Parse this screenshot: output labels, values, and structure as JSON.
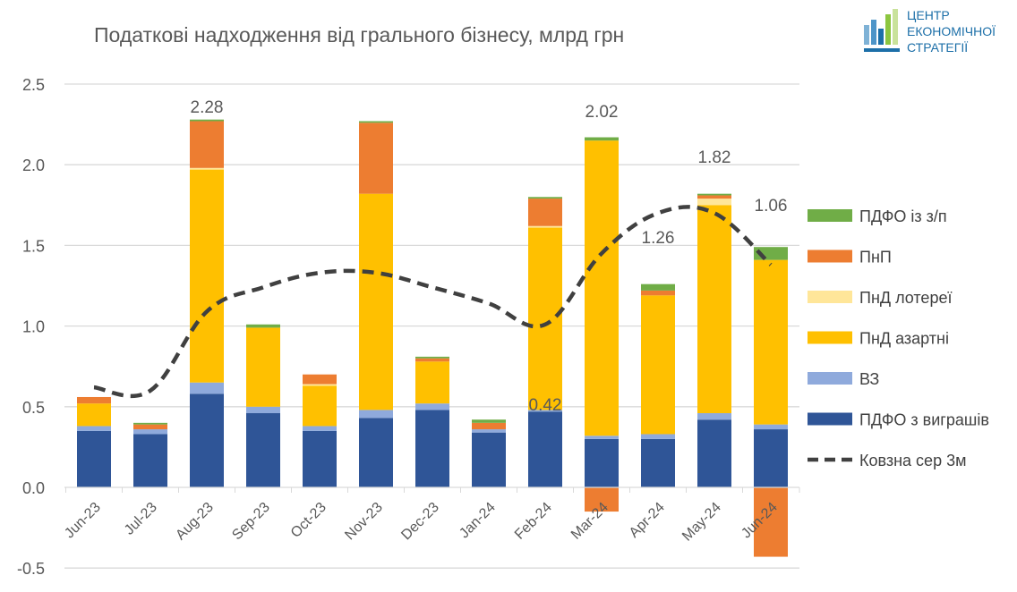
{
  "chart_data": {
    "type": "bar",
    "stacked": true,
    "title": "Податкові надходження від грального бізнесу, млрд грн",
    "xlabel": "",
    "ylabel": "",
    "ylim": [
      -0.5,
      2.5
    ],
    "yticks": [
      2.5,
      2.0,
      1.5,
      1.0,
      0.5,
      0.0,
      -0.5
    ],
    "ytick_labels": [
      "2.5",
      "2.0",
      "1.5",
      "1.0",
      "0.5",
      "0.0",
      "-0.5"
    ],
    "grid": true,
    "legend_position": "right",
    "categories": [
      "Jun-23",
      "Jul-23",
      "Aug-23",
      "Sep-23",
      "Oct-23",
      "Nov-23",
      "Dec-23",
      "Jan-24",
      "Feb-24",
      "Mar-24",
      "Apr-24",
      "May-24",
      "Jun-24"
    ],
    "series": [
      {
        "name": "ПДФО з виграшів",
        "color": "#2F5597",
        "values": [
          0.35,
          0.33,
          0.58,
          0.46,
          0.35,
          0.43,
          0.48,
          0.34,
          0.47,
          0.3,
          0.3,
          0.42,
          0.36
        ]
      },
      {
        "name": "ВЗ",
        "color": "#8FAADC",
        "values": [
          0.03,
          0.03,
          0.07,
          0.04,
          0.03,
          0.05,
          0.04,
          0.02,
          0.01,
          0.02,
          0.03,
          0.04,
          0.03
        ]
      },
      {
        "name": "ПнД азартні",
        "color": "#FFC000",
        "values": [
          0.14,
          0.0,
          1.32,
          0.49,
          0.25,
          1.34,
          0.26,
          0.0,
          1.13,
          1.83,
          0.86,
          1.29,
          1.02
        ]
      },
      {
        "name": "ПнД лотереї",
        "color": "#FFE699",
        "values": [
          0.0,
          0.0,
          0.01,
          0.0,
          0.01,
          0.0,
          0.0,
          0.0,
          0.01,
          0.0,
          0.0,
          0.04,
          0.0
        ]
      },
      {
        "name": "ПнП",
        "color": "#ED7D31",
        "values": [
          0.04,
          0.03,
          0.29,
          0.0,
          0.06,
          0.44,
          0.02,
          0.04,
          0.17,
          -0.15,
          0.03,
          0.02,
          -0.43
        ]
      },
      {
        "name": "ПДФО із з/п",
        "color": "#70AD47",
        "values": [
          0.0,
          0.01,
          0.01,
          0.02,
          0.0,
          0.01,
          0.01,
          0.02,
          0.01,
          0.02,
          0.04,
          0.01,
          0.08
        ]
      }
    ],
    "line_series": {
      "name": "Ковзна сер 3м",
      "color": "#404040",
      "style": "dashed",
      "values": [
        0.62,
        0.6,
        1.09,
        1.24,
        1.33,
        1.33,
        1.24,
        1.14,
        1.01,
        1.45,
        1.7,
        1.7,
        1.38
      ]
    },
    "data_labels": [
      {
        "category": "Aug-23",
        "text": "2.28"
      },
      {
        "category": "Jan-24",
        "text": "0.42"
      },
      {
        "category": "Mar-24",
        "text": "2.02"
      },
      {
        "category": "Apr-24",
        "text": "1.26"
      },
      {
        "category": "May-24",
        "text": "1.82"
      },
      {
        "category": "Jun-24",
        "text": "1.06"
      }
    ],
    "legend_order": [
      "ПДФО із з/п",
      "ПнП",
      "ПнД лотереї",
      "ПнД азартні",
      "ВЗ",
      "ПДФО з виграшів",
      "Ковзна сер 3м"
    ]
  },
  "logo": {
    "line1": "ЦЕНТР",
    "line2": "ЕКОНОМІЧНОЇ",
    "line3": "СТРАТЕГІЇ",
    "color": "#1C6FA8"
  }
}
